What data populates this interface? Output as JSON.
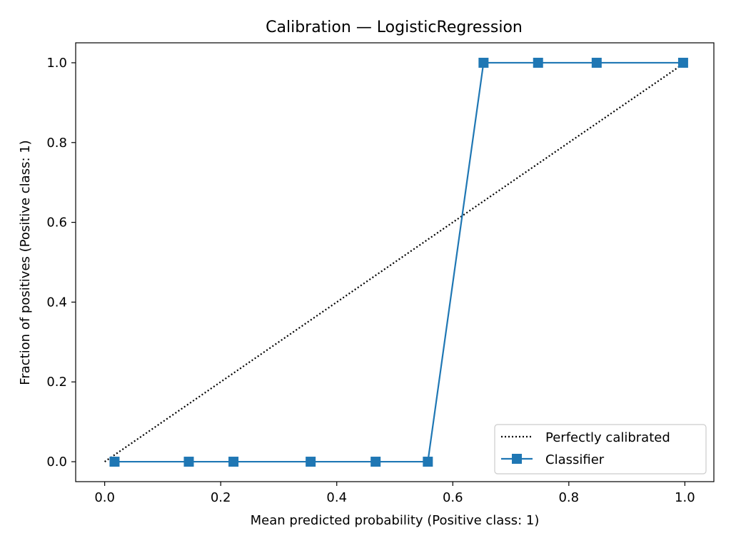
{
  "chart_data": {
    "type": "line",
    "title": "Calibration — LogisticRegression",
    "xlabel": "Mean predicted probability (Positive class: 1)",
    "ylabel": "Fraction of positives (Positive class: 1)",
    "xlim": [
      -0.05,
      1.05
    ],
    "ylim": [
      -0.05,
      1.05
    ],
    "xticks": [
      "0.0",
      "0.2",
      "0.4",
      "0.6",
      "0.8",
      "1.0"
    ],
    "yticks": [
      "0.0",
      "0.2",
      "0.4",
      "0.6",
      "0.8",
      "1.0"
    ],
    "grid": false,
    "legend_position": "bottom-right",
    "series": [
      {
        "name": "Perfectly calibrated",
        "style": "dotted",
        "color": "#000000",
        "x": [
          0.0,
          1.0
        ],
        "y": [
          0.0,
          1.0
        ]
      },
      {
        "name": "Classifier",
        "style": "solid",
        "marker": "square",
        "color": "#1f77b4",
        "x": [
          0.017,
          0.145,
          0.222,
          0.355,
          0.467,
          0.557,
          0.653,
          0.747,
          0.848,
          0.997
        ],
        "y": [
          0,
          0,
          0,
          0,
          0,
          0,
          1,
          1,
          1,
          1
        ]
      }
    ]
  }
}
